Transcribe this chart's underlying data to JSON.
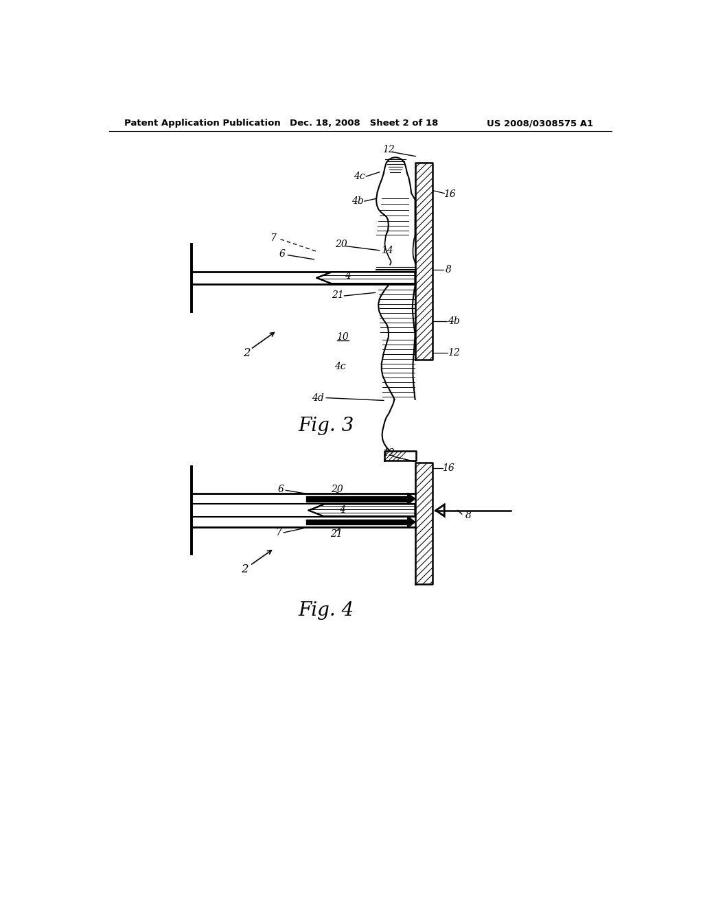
{
  "background_color": "#ffffff",
  "header_left": "Patent Application Publication",
  "header_center": "Dec. 18, 2008   Sheet 2 of 18",
  "header_right": "US 2008/0308575 A1",
  "fig3_label": "Fig. 3",
  "fig4_label": "Fig. 4",
  "line_color": "#000000",
  "text_color": "#000000"
}
